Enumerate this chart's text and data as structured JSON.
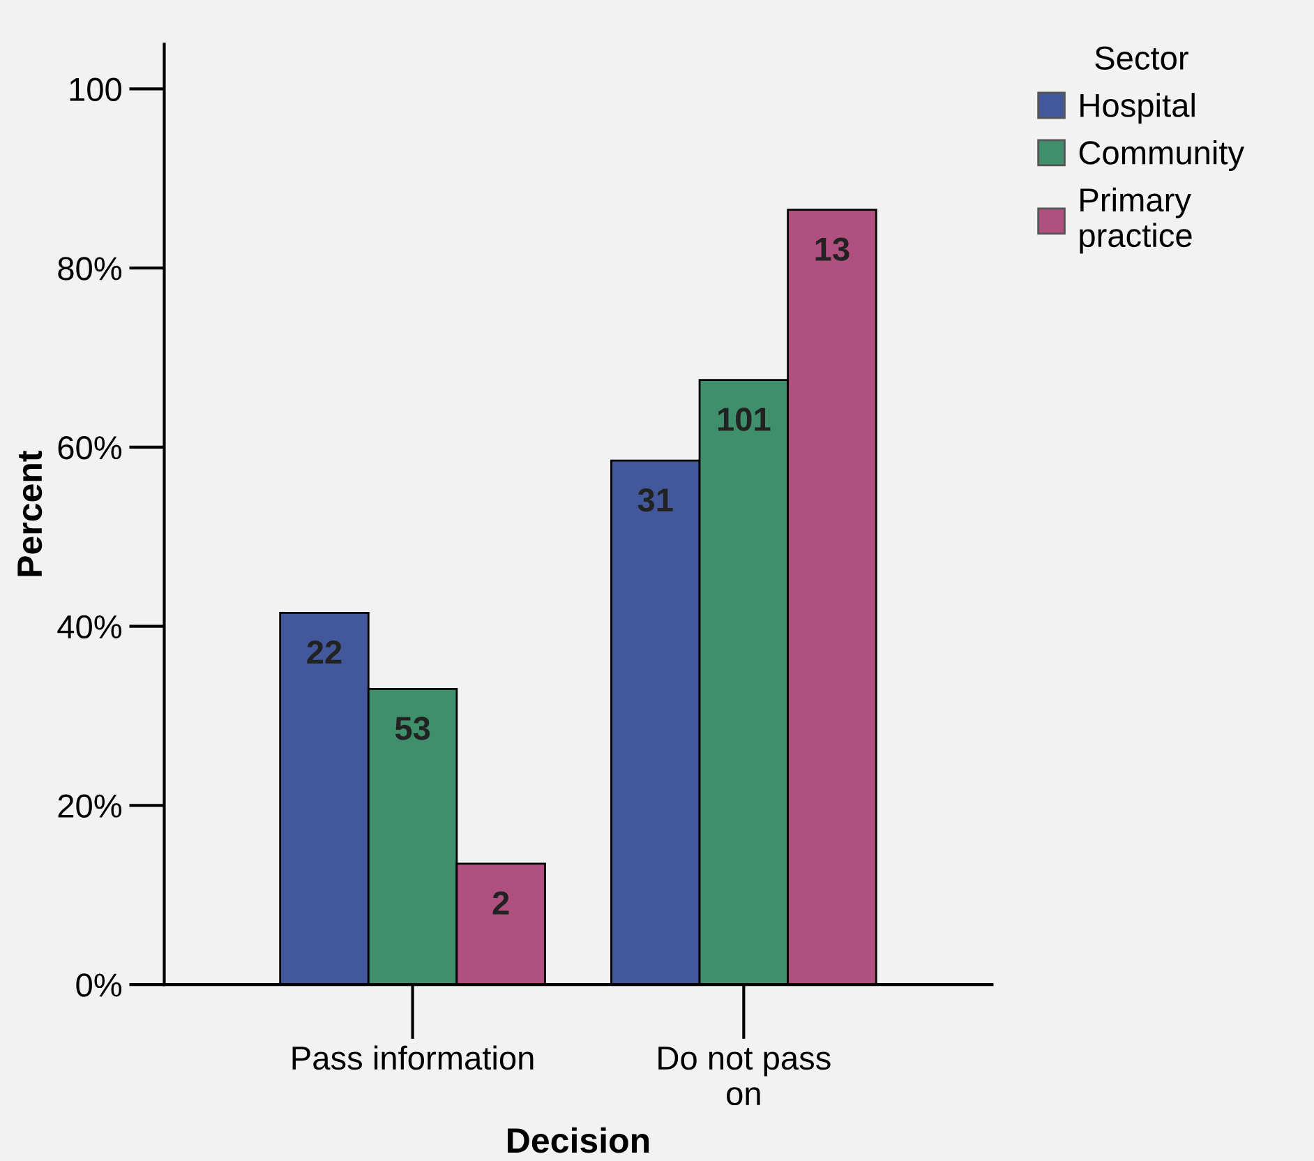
{
  "chart_data": {
    "type": "bar",
    "xlabel": "Decision",
    "ylabel": "Percent",
    "legend_title": "Sector",
    "categories": [
      "Pass information",
      "Do not pass\non"
    ],
    "series": [
      {
        "name": "Hospital",
        "color": "#42589a",
        "values": [
          41.5,
          58.5
        ]
      },
      {
        "name": "Community",
        "color": "#3f8f6c",
        "values": [
          33,
          67.5
        ]
      },
      {
        "name": "Primary\npractice",
        "color": "#b0507e",
        "values": [
          13.5,
          86.5
        ]
      }
    ],
    "annotations": [
      "22",
      "53",
      "2",
      "31",
      "101",
      "13"
    ],
    "ylim": [
      0,
      105
    ],
    "yticks": [
      {
        "value": 0,
        "label": "0%"
      },
      {
        "value": 20,
        "label": "20%"
      },
      {
        "value": 40,
        "label": "40%"
      },
      {
        "value": 60,
        "label": "60%"
      },
      {
        "value": 80,
        "label": "80%"
      },
      100
    ],
    "grid": false,
    "legend": "top right"
  }
}
